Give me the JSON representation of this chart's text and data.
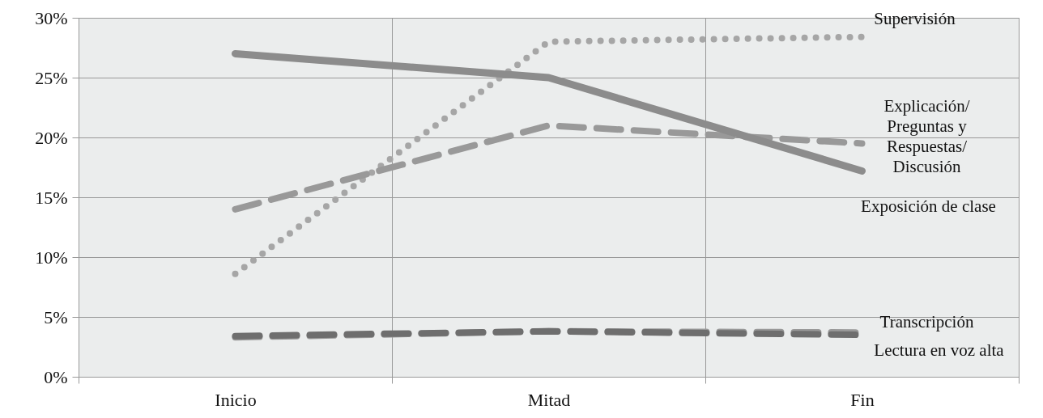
{
  "chart_data": {
    "type": "line",
    "categories": [
      "Inicio",
      "Mitad",
      "Fin"
    ],
    "series": [
      {
        "name": "Supervisión",
        "color": "#a6a6a6",
        "line_style": "dotted",
        "values": [
          8.6,
          28,
          28.4
        ]
      },
      {
        "name": "Explicación/ Preguntas y Respuestas/ Discusión",
        "color": "#999999",
        "line_style": "dashed",
        "values": [
          14,
          21,
          19.5
        ]
      },
      {
        "name": "Exposición de clase",
        "color": "#8c8c8c",
        "line_style": "solid",
        "values": [
          27,
          25,
          17.2
        ]
      },
      {
        "name": "Transcripción",
        "color": "#999999",
        "line_style": "dashed",
        "values": [
          3.3,
          3.8,
          3.7
        ]
      },
      {
        "name": "Lectura en voz alta",
        "color": "#6e6e6e",
        "line_style": "dashed",
        "values": [
          3.4,
          3.8,
          3.5
        ]
      }
    ],
    "ylim": [
      0,
      30
    ],
    "yticks": [
      {
        "value": 0,
        "label": "0%"
      },
      {
        "value": 5,
        "label": "5%"
      },
      {
        "value": 10,
        "label": "10%"
      },
      {
        "value": 15,
        "label": "15%"
      },
      {
        "value": 20,
        "label": "20%"
      },
      {
        "value": 25,
        "label": "25%"
      },
      {
        "value": 30,
        "label": "30%"
      }
    ],
    "grid": true,
    "marker": "none"
  }
}
